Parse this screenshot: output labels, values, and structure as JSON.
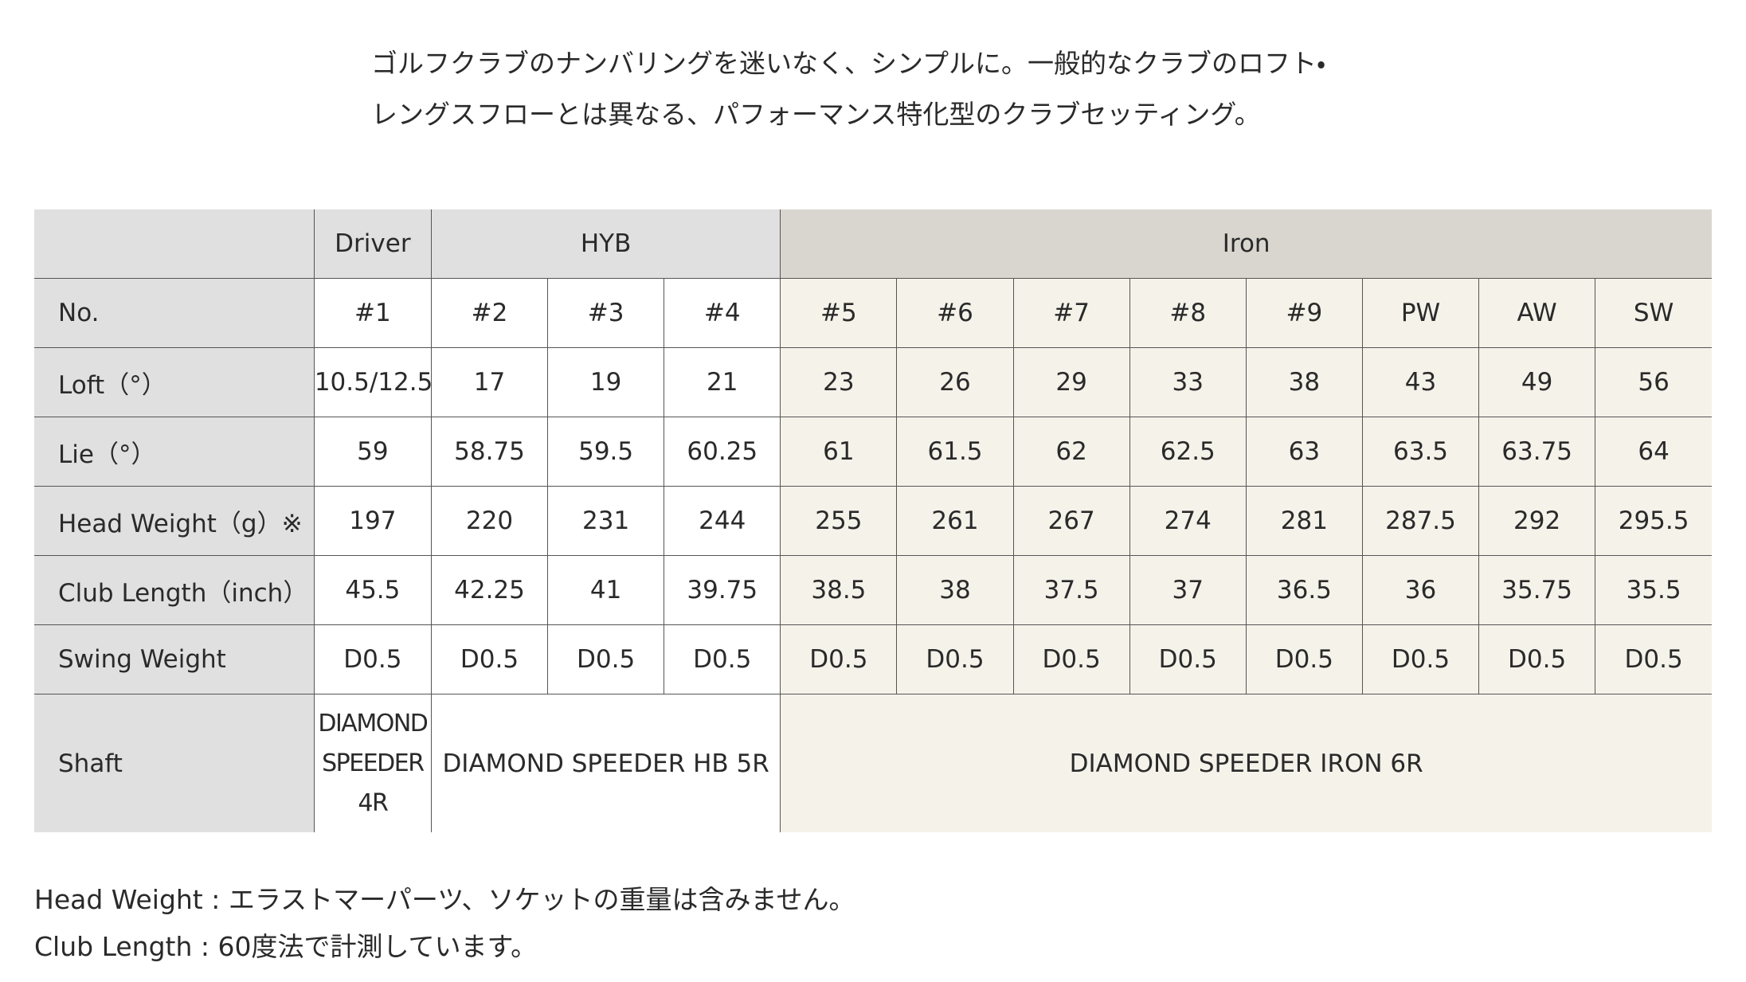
{
  "intro": [
    "ゴルフクラブのナンバリングを迷いなく、シンプルに。一般的なクラブのロフト・",
    "レングスフローとは異なる、パフォーマンス特化型のクラブセッティング。"
  ],
  "table": {
    "groups": [
      "Driver",
      "HYB",
      "Iron"
    ],
    "rows": [
      {
        "label": "No.",
        "cells": [
          "#1",
          "#2",
          "#3",
          "#4",
          "#5",
          "#6",
          "#7",
          "#8",
          "#9",
          "PW",
          "AW",
          "SW"
        ]
      },
      {
        "label": "Loft（°）",
        "cells": [
          "10.5/12.5",
          "17",
          "19",
          "21",
          "23",
          "26",
          "29",
          "33",
          "38",
          "43",
          "49",
          "56"
        ]
      },
      {
        "label": "Lie（°）",
        "cells": [
          "59",
          "58.75",
          "59.5",
          "60.25",
          "61",
          "61.5",
          "62",
          "62.5",
          "63",
          "63.5",
          "63.75",
          "64"
        ]
      },
      {
        "label": "Head Weight（g）※",
        "cells": [
          "197",
          "220",
          "231",
          "244",
          "255",
          "261",
          "267",
          "274",
          "281",
          "287.5",
          "292",
          "295.5"
        ]
      },
      {
        "label": "Club Length（inch）",
        "cells": [
          "45.5",
          "42.25",
          "41",
          "39.75",
          "38.5",
          "38",
          "37.5",
          "37",
          "36.5",
          "36",
          "35.75",
          "35.5"
        ]
      },
      {
        "label": "Swing Weight",
        "cells": [
          "D0.5",
          "D0.5",
          "D0.5",
          "D0.5",
          "D0.5",
          "D0.5",
          "D0.5",
          "D0.5",
          "D0.5",
          "D0.5",
          "D0.5",
          "D0.5"
        ]
      }
    ],
    "shaft": {
      "label": "Shaft",
      "cells": [
        "DIAMOND SPEEDER 4R",
        "DIAMOND SPEEDER HB 5R",
        "DIAMOND SPEEDER IRON 6R"
      ]
    }
  },
  "notes": [
    "Head Weight : エラストマーパーツ、ソケットの重量は含みません。",
    "Club Length : 60度法で計測しています。"
  ]
}
